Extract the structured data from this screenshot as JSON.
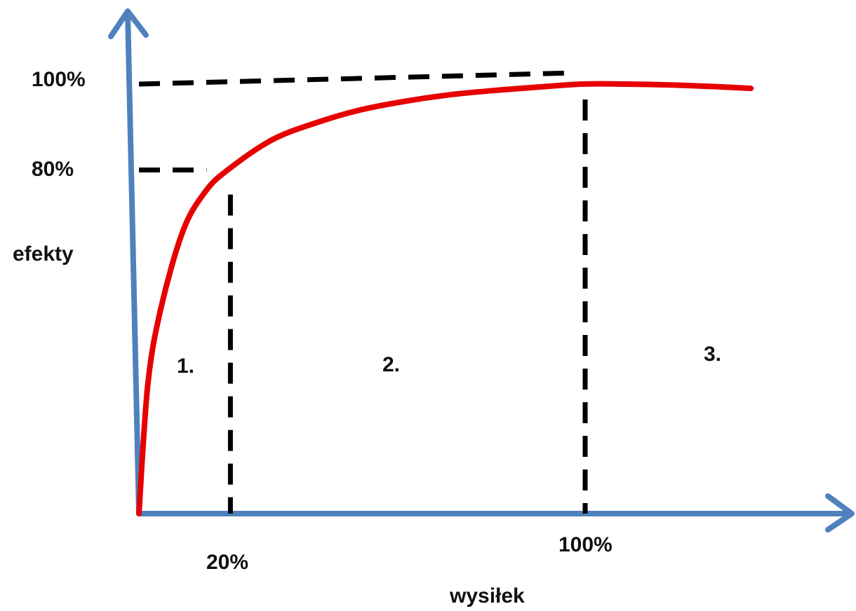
{
  "chart_data": {
    "type": "line",
    "title": "",
    "xlabel": "wysiłek",
    "ylabel": "efekty",
    "x_ticks": [
      "20%",
      "100%"
    ],
    "y_ticks": [
      "100%",
      "80%"
    ],
    "reference_points": [
      {
        "x": 20,
        "y": 80
      },
      {
        "x": 100,
        "y": 100
      }
    ],
    "region_labels": [
      "1.",
      "2.",
      "3."
    ],
    "series": [
      {
        "x": [
          0,
          2,
          5,
          10,
          15,
          20,
          30,
          40,
          50,
          60,
          70,
          80,
          90,
          100,
          110,
          120,
          130,
          138
        ],
        "y": [
          0,
          30,
          48,
          66,
          75,
          80,
          87,
          91,
          94,
          96,
          97.5,
          98.5,
          99.3,
          100,
          100,
          99.8,
          99.4,
          99
        ]
      }
    ],
    "xlim": [
      0,
      160
    ],
    "ylim": [
      0,
      100
    ],
    "colors": {
      "axes": "#4f81bd",
      "curve": "#e60000",
      "guides": "#000000"
    },
    "grid": false
  }
}
